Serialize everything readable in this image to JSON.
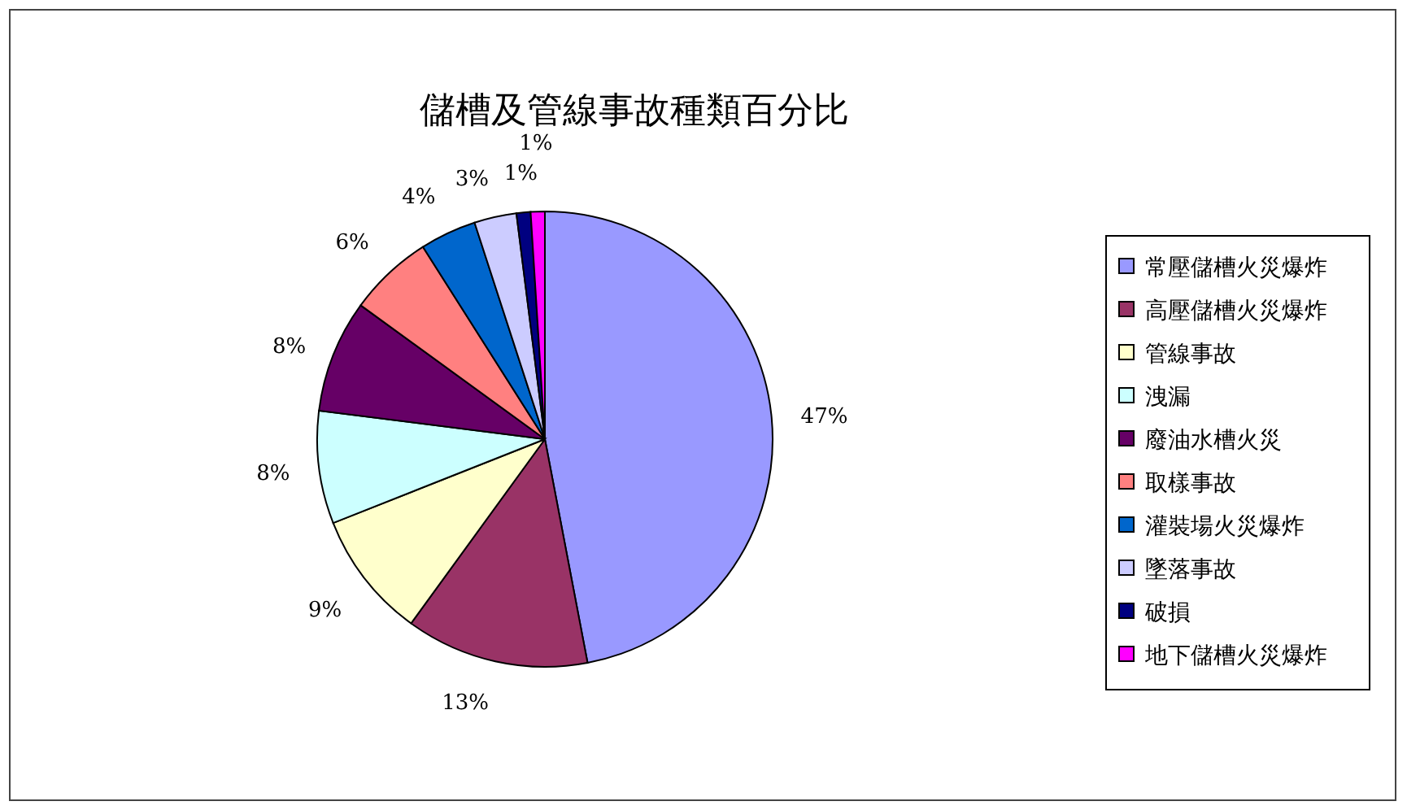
{
  "chart_data": {
    "type": "pie",
    "title": "儲槽及管線事故種類百分比",
    "categories": [
      "常壓儲槽火災爆炸",
      "高壓儲槽火災爆炸",
      "管線事故",
      "洩漏",
      "廢油水槽火災",
      "取樣事故",
      "灌裝場火災爆炸",
      "墜落事故",
      "破損",
      "地下儲槽火災爆炸"
    ],
    "values": [
      47,
      13,
      9,
      8,
      8,
      6,
      4,
      3,
      1,
      1
    ],
    "value_labels": [
      "47%",
      "13%",
      "9%",
      "8%",
      "8%",
      "6%",
      "4%",
      "3%",
      "1%",
      "1%"
    ],
    "colors": [
      "#9999ff",
      "#993366",
      "#ffffcc",
      "#ccffff",
      "#660066",
      "#ff8080",
      "#0066cc",
      "#ccccff",
      "#000080",
      "#ff00ff"
    ],
    "legend": "right"
  }
}
